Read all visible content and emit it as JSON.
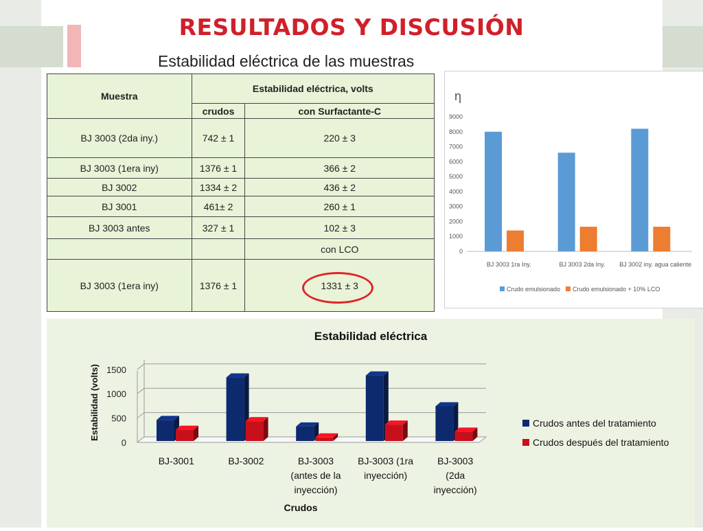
{
  "slide": {
    "title": "RESULTADOS Y DISCUSIÓN",
    "subtitle": "Estabilidad eléctrica de las muestras"
  },
  "table": {
    "col_muestra": "Muestra",
    "col_estabilidad": "Estabilidad eléctrica, volts",
    "col_crudos": "crudos",
    "col_surfactante": "con Surfactante-C",
    "rows": [
      {
        "muestra": "BJ 3003 (2da iny.)",
        "crudos": "742 ± 1",
        "tratado": "220 ± 3"
      },
      {
        "muestra": "BJ 3003  (1era iny)",
        "crudos": "1376 ± 1",
        "tratado": "366 ± 2"
      },
      {
        "muestra": "BJ 3002",
        "crudos": "1334 ± 2",
        "tratado": "436 ± 2"
      },
      {
        "muestra": "BJ 3001",
        "crudos": "461± 2",
        "tratado": "260 ± 1"
      },
      {
        "muestra": "BJ 3003 antes",
        "crudos": "327 ± 1",
        "tratado": "102 ± 3"
      }
    ],
    "lco_label": "con LCO",
    "lco_row": {
      "muestra": "BJ 3003  (1era iny)",
      "crudos": "1376 ± 1",
      "tratado": "1331 ± 3"
    }
  },
  "chart_data": [
    {
      "type": "bar",
      "title": "",
      "corner_label": "η",
      "categories": [
        "BJ 3003 1ra Iny.",
        "BJ 3003 2da Iny.",
        "BJ 3002 iny. agua caliente"
      ],
      "series": [
        {
          "name": "Crudo emulsionado",
          "values": [
            8000,
            6600,
            8200
          ],
          "color": "#5b9bd5"
        },
        {
          "name": "Crudo emulsionado + 10% LCO",
          "values": [
            1400,
            1650,
            1650
          ],
          "color": "#ed7d31"
        }
      ],
      "ylim": [
        0,
        9000
      ],
      "yticks": [
        "0",
        "1000",
        "2000",
        "3000",
        "4000",
        "5000",
        "6000",
        "7000",
        "8000",
        "9000"
      ],
      "grid": false,
      "legend": "bottom"
    },
    {
      "type": "bar",
      "title": "Estabilidad eléctrica",
      "xlabel": "Crudos",
      "ylabel": "Estabilidad (volts)",
      "categories": [
        [
          "BJ-3001"
        ],
        [
          "BJ-3002"
        ],
        [
          "BJ-3003",
          "(antes de la",
          "inyección)"
        ],
        [
          "BJ-3003 (1ra",
          "inyección)"
        ],
        [
          "BJ-3003",
          "(2da",
          "inyección)"
        ]
      ],
      "series": [
        {
          "name": "Crudos antes del tratamiento",
          "values": [
            461,
            1334,
            327,
            1376,
            742
          ],
          "color": "#0e2a6e"
        },
        {
          "name": "Crudos después del tratamiento",
          "values": [
            260,
            436,
            102,
            366,
            220
          ],
          "color": "#c8101c"
        }
      ],
      "ylim": [
        0,
        1500
      ],
      "yticks": [
        "0",
        "500",
        "1000",
        "1500"
      ],
      "grid": true,
      "legend": "right"
    }
  ]
}
